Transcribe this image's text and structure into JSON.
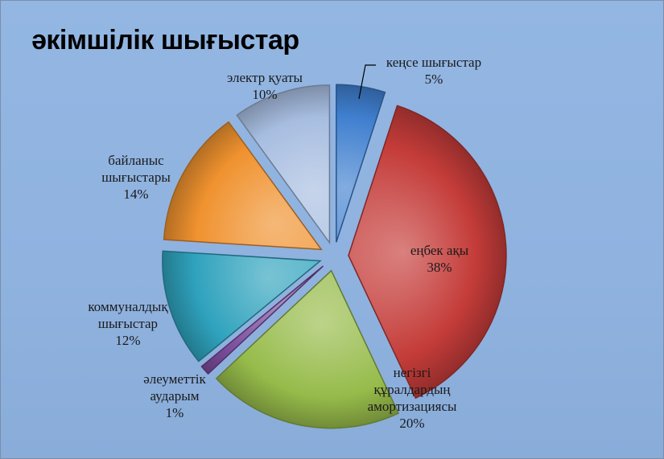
{
  "chart_data": {
    "type": "pie",
    "title": "әкімшілік шығыстар",
    "exploded": true,
    "slices": [
      {
        "label_lines": [
          "кеңсе шығыстар",
          "5%"
        ],
        "value": 5,
        "color": "#3f7fcf"
      },
      {
        "label_lines": [
          "еңбек ақы",
          "38%"
        ],
        "value": 38,
        "color": "#c43c39"
      },
      {
        "label_lines": [
          "негізгі",
          "құралдардың",
          "амортизациясы",
          "20%"
        ],
        "value": 20,
        "color": "#96bb4a"
      },
      {
        "label_lines": [
          "әлеуметтік",
          "аударым",
          "1%"
        ],
        "value": 1,
        "color": "#7a4c9c"
      },
      {
        "label_lines": [
          "коммуналдық",
          "шығыстар",
          "12%"
        ],
        "value": 12,
        "color": "#2fa2bd"
      },
      {
        "label_lines": [
          "байланыс",
          "шығыстары",
          "14%"
        ],
        "value": 14,
        "color": "#f0922f"
      },
      {
        "label_lines": [
          "электр қуаты",
          "10%"
        ],
        "value": 10,
        "color": "#a7bde0"
      }
    ]
  }
}
